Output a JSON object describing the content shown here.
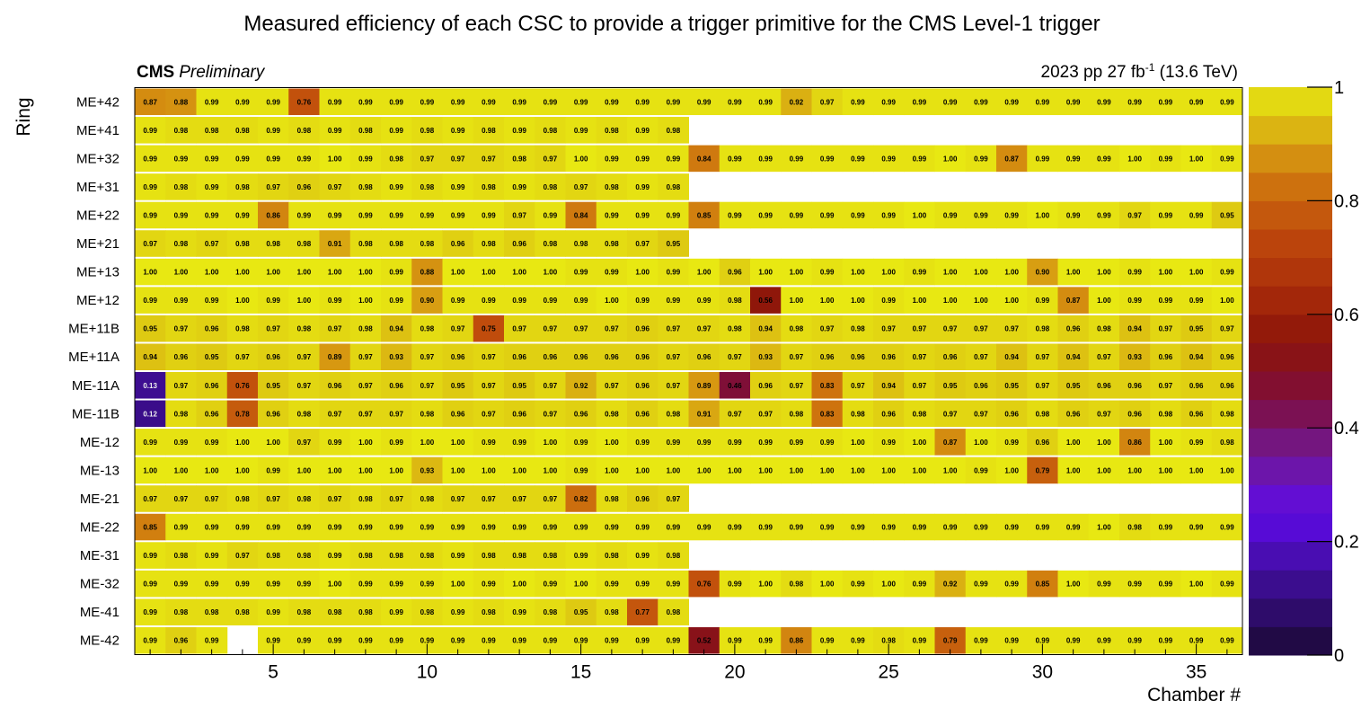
{
  "chart_data": {
    "type": "heatmap",
    "title": "Measured efficiency of each CSC to provide a trigger primitive for the CMS Level-1 trigger",
    "experiment_label": "CMS",
    "status_label": "Preliminary",
    "run_info_prefix": "2023 pp 27 fb",
    "run_info_exponent": "-1",
    "run_info_suffix": " (13.6 TeV)",
    "xlabel": "Chamber #",
    "ylabel": "Ring",
    "xlim": [
      0.5,
      36.5
    ],
    "x_ticks": [
      5,
      10,
      15,
      20,
      25,
      30,
      35
    ],
    "z_range": [
      0,
      1
    ],
    "z_ticks": [
      "0",
      "0.2",
      "0.4",
      "0.6",
      "0.8",
      "1"
    ],
    "rows": [
      {
        "label": "ME+42",
        "values": [
          "0.87",
          "0.88",
          "0.99",
          "0.99",
          "0.99",
          "0.76",
          "0.99",
          "0.99",
          "0.99",
          "0.99",
          "0.99",
          "0.99",
          "0.99",
          "0.99",
          "0.99",
          "0.99",
          "0.99",
          "0.99",
          "0.99",
          "0.99",
          "0.99",
          "0.92",
          "0.97",
          "0.99",
          "0.99",
          "0.99",
          "0.99",
          "0.99",
          "0.99",
          "0.99",
          "0.99",
          "0.99",
          "0.99",
          "0.99",
          "0.99",
          "0.99"
        ]
      },
      {
        "label": "ME+41",
        "values": [
          "0.99",
          "0.98",
          "0.98",
          "0.98",
          "0.99",
          "0.98",
          "0.99",
          "0.98",
          "0.99",
          "0.98",
          "0.99",
          "0.98",
          "0.99",
          "0.98",
          "0.99",
          "0.98",
          "0.99",
          "0.98"
        ]
      },
      {
        "label": "ME+32",
        "values": [
          "0.99",
          "0.99",
          "0.99",
          "0.99",
          "0.99",
          "0.99",
          "1.00",
          "0.99",
          "0.98",
          "0.97",
          "0.97",
          "0.97",
          "0.98",
          "0.97",
          "1.00",
          "0.99",
          "0.99",
          "0.99",
          "0.84",
          "0.99",
          "0.99",
          "0.99",
          "0.99",
          "0.99",
          "0.99",
          "0.99",
          "1.00",
          "0.99",
          "0.87",
          "0.99",
          "0.99",
          "0.99",
          "1.00",
          "0.99",
          "1.00",
          "0.99"
        ]
      },
      {
        "label": "ME+31",
        "values": [
          "0.99",
          "0.98",
          "0.99",
          "0.98",
          "0.97",
          "0.96",
          "0.97",
          "0.98",
          "0.99",
          "0.98",
          "0.99",
          "0.98",
          "0.99",
          "0.98",
          "0.97",
          "0.98",
          "0.99",
          "0.98"
        ]
      },
      {
        "label": "ME+22",
        "values": [
          "0.99",
          "0.99",
          "0.99",
          "0.99",
          "0.86",
          "0.99",
          "0.99",
          "0.99",
          "0.99",
          "0.99",
          "0.99",
          "0.99",
          "0.97",
          "0.99",
          "0.84",
          "0.99",
          "0.99",
          "0.99",
          "0.85",
          "0.99",
          "0.99",
          "0.99",
          "0.99",
          "0.99",
          "0.99",
          "1.00",
          "0.99",
          "0.99",
          "0.99",
          "1.00",
          "0.99",
          "0.99",
          "0.97",
          "0.99",
          "0.99",
          "0.95"
        ]
      },
      {
        "label": "ME+21",
        "values": [
          "0.97",
          "0.98",
          "0.97",
          "0.98",
          "0.98",
          "0.98",
          "0.91",
          "0.98",
          "0.98",
          "0.98",
          "0.96",
          "0.98",
          "0.96",
          "0.98",
          "0.98",
          "0.98",
          "0.97",
          "0.95"
        ]
      },
      {
        "label": "ME+13",
        "values": [
          "1.00",
          "1.00",
          "1.00",
          "1.00",
          "1.00",
          "1.00",
          "1.00",
          "1.00",
          "0.99",
          "0.88",
          "1.00",
          "1.00",
          "1.00",
          "1.00",
          "0.99",
          "0.99",
          "1.00",
          "0.99",
          "1.00",
          "0.96",
          "1.00",
          "1.00",
          "0.99",
          "1.00",
          "1.00",
          "0.99",
          "1.00",
          "1.00",
          "1.00",
          "0.90",
          "1.00",
          "1.00",
          "0.99",
          "1.00",
          "1.00",
          "0.99"
        ]
      },
      {
        "label": "ME+12",
        "values": [
          "0.99",
          "0.99",
          "0.99",
          "1.00",
          "0.99",
          "1.00",
          "0.99",
          "1.00",
          "0.99",
          "0.90",
          "0.99",
          "0.99",
          "0.99",
          "0.99",
          "0.99",
          "1.00",
          "0.99",
          "0.99",
          "0.99",
          "0.98",
          "0.56",
          "1.00",
          "1.00",
          "1.00",
          "0.99",
          "1.00",
          "1.00",
          "1.00",
          "1.00",
          "0.99",
          "0.87",
          "1.00",
          "0.99",
          "0.99",
          "0.99",
          "1.00"
        ]
      },
      {
        "label": "ME+11B",
        "values": [
          "0.95",
          "0.97",
          "0.96",
          "0.98",
          "0.97",
          "0.98",
          "0.97",
          "0.98",
          "0.94",
          "0.98",
          "0.97",
          "0.75",
          "0.97",
          "0.97",
          "0.97",
          "0.97",
          "0.96",
          "0.97",
          "0.97",
          "0.98",
          "0.94",
          "0.98",
          "0.97",
          "0.98",
          "0.97",
          "0.97",
          "0.97",
          "0.97",
          "0.97",
          "0.98",
          "0.96",
          "0.98",
          "0.94",
          "0.97",
          "0.95",
          "0.97"
        ]
      },
      {
        "label": "ME+11A",
        "values": [
          "0.94",
          "0.96",
          "0.95",
          "0.97",
          "0.96",
          "0.97",
          "0.89",
          "0.97",
          "0.93",
          "0.97",
          "0.96",
          "0.97",
          "0.96",
          "0.96",
          "0.96",
          "0.96",
          "0.96",
          "0.97",
          "0.96",
          "0.97",
          "0.93",
          "0.97",
          "0.96",
          "0.96",
          "0.96",
          "0.97",
          "0.96",
          "0.97",
          "0.94",
          "0.97",
          "0.94",
          "0.97",
          "0.93",
          "0.96",
          "0.94",
          "0.96"
        ]
      },
      {
        "label": "ME-11A",
        "values": [
          "0.13",
          "0.97",
          "0.96",
          "0.76",
          "0.95",
          "0.97",
          "0.96",
          "0.97",
          "0.96",
          "0.97",
          "0.95",
          "0.97",
          "0.95",
          "0.97",
          "0.92",
          "0.97",
          "0.96",
          "0.97",
          "0.89",
          "0.46",
          "0.96",
          "0.97",
          "0.83",
          "0.97",
          "0.94",
          "0.97",
          "0.95",
          "0.96",
          "0.95",
          "0.97",
          "0.95",
          "0.96",
          "0.96",
          "0.97",
          "0.96",
          "0.96"
        ]
      },
      {
        "label": "ME-11B",
        "values": [
          "0.12",
          "0.98",
          "0.96",
          "0.78",
          "0.96",
          "0.98",
          "0.97",
          "0.97",
          "0.97",
          "0.98",
          "0.96",
          "0.97",
          "0.96",
          "0.97",
          "0.96",
          "0.98",
          "0.96",
          "0.98",
          "0.91",
          "0.97",
          "0.97",
          "0.98",
          "0.83",
          "0.98",
          "0.96",
          "0.98",
          "0.97",
          "0.97",
          "0.96",
          "0.98",
          "0.96",
          "0.97",
          "0.96",
          "0.98",
          "0.96",
          "0.98"
        ]
      },
      {
        "label": "ME-12",
        "values": [
          "0.99",
          "0.99",
          "0.99",
          "1.00",
          "1.00",
          "0.97",
          "0.99",
          "1.00",
          "0.99",
          "1.00",
          "1.00",
          "0.99",
          "0.99",
          "1.00",
          "0.99",
          "1.00",
          "0.99",
          "0.99",
          "0.99",
          "0.99",
          "0.99",
          "0.99",
          "0.99",
          "1.00",
          "0.99",
          "1.00",
          "0.87",
          "1.00",
          "0.99",
          "0.96",
          "1.00",
          "1.00",
          "0.86",
          "1.00",
          "0.99",
          "0.98"
        ]
      },
      {
        "label": "ME-13",
        "values": [
          "1.00",
          "1.00",
          "1.00",
          "1.00",
          "0.99",
          "1.00",
          "1.00",
          "1.00",
          "1.00",
          "0.93",
          "1.00",
          "1.00",
          "1.00",
          "1.00",
          "0.99",
          "1.00",
          "1.00",
          "1.00",
          "1.00",
          "1.00",
          "1.00",
          "1.00",
          "1.00",
          "1.00",
          "1.00",
          "1.00",
          "1.00",
          "0.99",
          "1.00",
          "0.79",
          "1.00",
          "1.00",
          "1.00",
          "1.00",
          "1.00",
          "1.00"
        ]
      },
      {
        "label": "ME-21",
        "values": [
          "0.97",
          "0.97",
          "0.97",
          "0.98",
          "0.97",
          "0.98",
          "0.97",
          "0.98",
          "0.97",
          "0.98",
          "0.97",
          "0.97",
          "0.97",
          "0.97",
          "0.82",
          "0.98",
          "0.96",
          "0.97"
        ]
      },
      {
        "label": "ME-22",
        "values": [
          "0.85",
          "0.99",
          "0.99",
          "0.99",
          "0.99",
          "0.99",
          "0.99",
          "0.99",
          "0.99",
          "0.99",
          "0.99",
          "0.99",
          "0.99",
          "0.99",
          "0.99",
          "0.99",
          "0.99",
          "0.99",
          "0.99",
          "0.99",
          "0.99",
          "0.99",
          "0.99",
          "0.99",
          "0.99",
          "0.99",
          "0.99",
          "0.99",
          "0.99",
          "0.99",
          "0.99",
          "1.00",
          "0.98",
          "0.99",
          "0.99",
          "0.99"
        ]
      },
      {
        "label": "ME-31",
        "values": [
          "0.99",
          "0.98",
          "0.99",
          "0.97",
          "0.98",
          "0.98",
          "0.99",
          "0.98",
          "0.98",
          "0.98",
          "0.99",
          "0.98",
          "0.98",
          "0.98",
          "0.99",
          "0.98",
          "0.99",
          "0.98"
        ]
      },
      {
        "label": "ME-32",
        "values": [
          "0.99",
          "0.99",
          "0.99",
          "0.99",
          "0.99",
          "0.99",
          "1.00",
          "0.99",
          "0.99",
          "0.99",
          "1.00",
          "0.99",
          "1.00",
          "0.99",
          "1.00",
          "0.99",
          "0.99",
          "0.99",
          "0.76",
          "0.99",
          "1.00",
          "0.98",
          "1.00",
          "0.99",
          "1.00",
          "0.99",
          "0.92",
          "0.99",
          "0.99",
          "0.85",
          "1.00",
          "0.99",
          "0.99",
          "0.99",
          "1.00",
          "0.99"
        ]
      },
      {
        "label": "ME-41",
        "values": [
          "0.99",
          "0.98",
          "0.98",
          "0.98",
          "0.99",
          "0.98",
          "0.98",
          "0.98",
          "0.99",
          "0.98",
          "0.99",
          "0.98",
          "0.99",
          "0.98",
          "0.95",
          "0.98",
          "0.77",
          "0.98"
        ]
      },
      {
        "label": "ME-42",
        "values": [
          "0.99",
          "0.96",
          "0.99",
          "",
          "0.99",
          "0.99",
          "0.99",
          "0.99",
          "0.99",
          "0.99",
          "0.99",
          "0.99",
          "0.99",
          "0.99",
          "0.99",
          "0.99",
          "0.99",
          "0.99",
          "0.52",
          "0.99",
          "0.99",
          "0.86",
          "0.99",
          "0.99",
          "0.98",
          "0.99",
          "0.79",
          "0.99",
          "0.99",
          "0.99",
          "0.99",
          "0.99",
          "0.99",
          "0.99",
          "0.99",
          "0.99"
        ]
      }
    ]
  }
}
